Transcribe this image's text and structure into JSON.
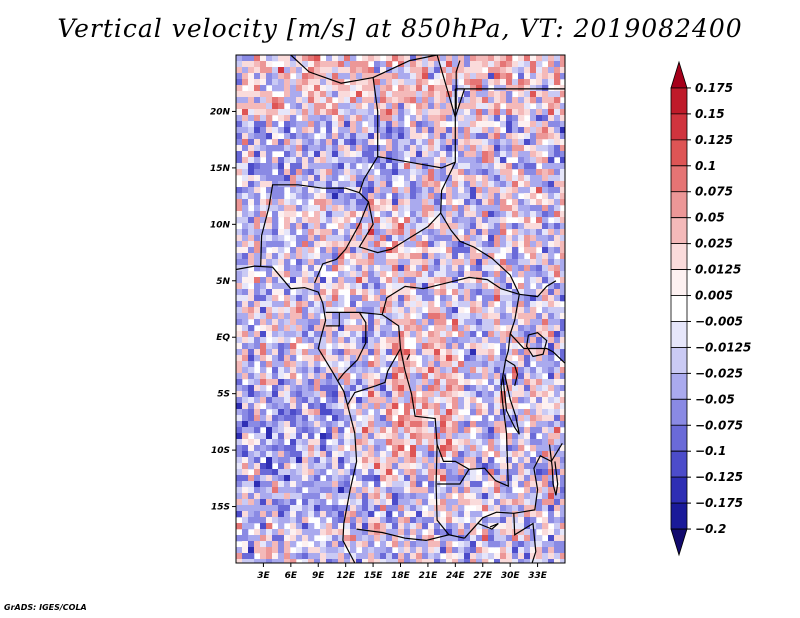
{
  "chart_data": {
    "type": "heatmap",
    "title": "Vertical velocity [m/s] at 850hPa, VT: 2019082400",
    "variable": "Vertical velocity",
    "units": "m/s",
    "level": "850hPa",
    "valid_time": "2019082400",
    "lon_range": [
      0,
      36
    ],
    "lat_range": [
      -20,
      25
    ],
    "x_ticks": [
      3,
      6,
      9,
      12,
      15,
      18,
      21,
      24,
      27,
      30,
      33
    ],
    "x_tick_labels": [
      "3E",
      "6E",
      "9E",
      "12E",
      "15E",
      "18E",
      "21E",
      "24E",
      "27E",
      "30E",
      "33E"
    ],
    "y_ticks": [
      20,
      15,
      10,
      5,
      0,
      -5,
      -10,
      -15
    ],
    "y_tick_labels": [
      "20N",
      "15N",
      "10N",
      "5N",
      "EQ",
      "5S",
      "10S",
      "15S"
    ],
    "colorbar": {
      "levels": [
        0.175,
        0.15,
        0.125,
        0.1,
        0.075,
        0.05,
        0.025,
        0.0125,
        0.005,
        -0.005,
        -0.0125,
        -0.025,
        -0.05,
        -0.075,
        -0.1,
        -0.125,
        -0.175,
        -0.2
      ],
      "labels": [
        "0.175",
        "0.15",
        "0.125",
        "0.1",
        "0.075",
        "0.05",
        "0.025",
        "0.0125",
        "0.005",
        "−0.005",
        "−0.0125",
        "−0.025",
        "−0.05",
        "−0.075",
        "−0.1",
        "−0.125",
        "−0.175",
        "−0.2"
      ],
      "colors": [
        "#a5001a",
        "#bf1b2a",
        "#d0343e",
        "#de5555",
        "#e57474",
        "#ec9797",
        "#f4b9b9",
        "#fadbdb",
        "#fdf1f1",
        "#ffffff",
        "#e6e6fa",
        "#cacaf4",
        "#aaaaee",
        "#8a8ae4",
        "#6a6ad8",
        "#4c4cca",
        "#2e2eb4",
        "#1a1a99",
        "#120a6e"
      ]
    }
  },
  "footer": {
    "credit": "GrADS: IGES/COLA"
  }
}
